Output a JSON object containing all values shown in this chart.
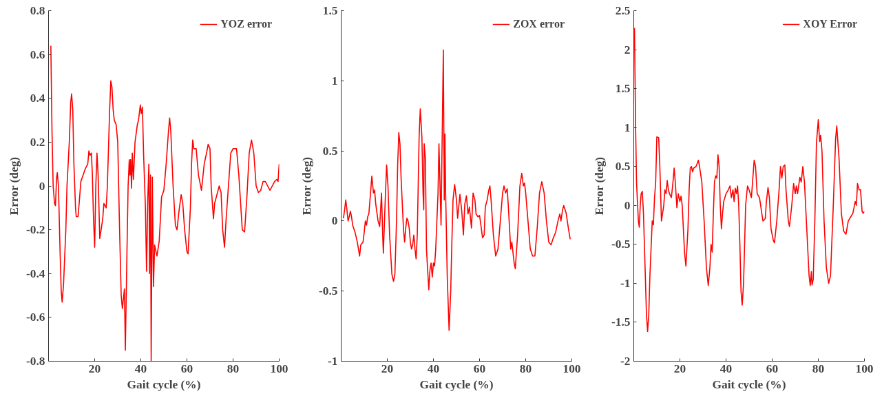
{
  "chart_data": [
    {
      "type": "line",
      "xlabel": "Gait cycle (%)",
      "ylabel": "Error (deg)",
      "legend": "top right",
      "xlim": [
        0,
        100
      ],
      "xticks": [
        20,
        40,
        60,
        80,
        100
      ],
      "ylim": [
        -0.8,
        0.8
      ],
      "yticks": [
        -0.8,
        -0.6,
        -0.4,
        -0.2,
        0,
        0.2,
        0.4,
        0.6,
        0.8
      ],
      "x": [
        1,
        1.5,
        2,
        2.6,
        3.0,
        3.5,
        3.8,
        4.3,
        5,
        5.5,
        5.9,
        6.5,
        7.5,
        8,
        8.5,
        9,
        9.6,
        10,
        10.5,
        11,
        11.7,
        12,
        12.8,
        13.5,
        14,
        15,
        16,
        17,
        17.5,
        18,
        18.6,
        19,
        19.5,
        20,
        20.5,
        21,
        21.5,
        22.2,
        22.8,
        23.5,
        24,
        25,
        25.5,
        26.5,
        27,
        27.5,
        28,
        28.5,
        29.3,
        30,
        30.8,
        31.5,
        32,
        32.6,
        32.9,
        33.3,
        34,
        34.5,
        35,
        35.3,
        35.6,
        36,
        36.3,
        36.8,
        37.5,
        38.5,
        39,
        39.8,
        40.2,
        40.7,
        41.2,
        42,
        42.5,
        43,
        43.5,
        43.8,
        44.2,
        44.5,
        45,
        45.5,
        46,
        47,
        48,
        49,
        50,
        51,
        52,
        52.5,
        53,
        54,
        55,
        55.7,
        56.5,
        57.5,
        58.2,
        59,
        60,
        60.5,
        61.5,
        62,
        62.5,
        63,
        64,
        65,
        66.3,
        67.5,
        68.5,
        69.2,
        70,
        70.5,
        71.5,
        72,
        73,
        74,
        74.8,
        75.5,
        76.3,
        77,
        78,
        79,
        80,
        81.5,
        82.5,
        84,
        85,
        86,
        87,
        88,
        89,
        90,
        91,
        92,
        93,
        94,
        95,
        96,
        97,
        98,
        99,
        99.5,
        100
      ],
      "series": [
        {
          "name": "YOZ error",
          "color": "#ff0000",
          "values": [
            0.64,
            0.25,
            0.0,
            -0.08,
            -0.09,
            0.04,
            0.06,
            0.0,
            -0.3,
            -0.48,
            -0.53,
            -0.45,
            -0.2,
            0.0,
            0.1,
            0.2,
            0.38,
            0.42,
            0.35,
            0.1,
            -0.1,
            -0.14,
            -0.14,
            -0.05,
            0.02,
            0.05,
            0.08,
            0.1,
            0.16,
            0.14,
            0.15,
            0.05,
            -0.15,
            -0.28,
            0.0,
            0.15,
            0.05,
            -0.24,
            -0.2,
            -0.15,
            -0.08,
            -0.1,
            0.0,
            0.35,
            0.48,
            0.45,
            0.35,
            0.3,
            0.28,
            0.2,
            -0.2,
            -0.5,
            -0.56,
            -0.5,
            -0.47,
            -0.75,
            -0.3,
            0.0,
            0.12,
            0.05,
            0.12,
            -0.01,
            0.15,
            0.03,
            0.2,
            0.28,
            0.3,
            0.37,
            0.33,
            0.36,
            0.15,
            -0.1,
            -0.39,
            -0.07,
            0.1,
            -0.4,
            0.05,
            -0.8,
            0.04,
            -0.46,
            -0.27,
            -0.32,
            -0.25,
            -0.05,
            -0.02,
            0.1,
            0.25,
            0.31,
            0.25,
            0.0,
            -0.18,
            -0.2,
            -0.12,
            -0.04,
            -0.08,
            -0.2,
            -0.3,
            -0.31,
            -0.1,
            0.1,
            0.21,
            0.17,
            0.17,
            0.05,
            -0.02,
            0.1,
            0.15,
            0.19,
            0.17,
            0.0,
            -0.15,
            -0.08,
            -0.04,
            0.0,
            -0.03,
            -0.2,
            -0.28,
            -0.15,
            0.0,
            0.15,
            0.17,
            0.17,
            0.05,
            -0.2,
            -0.21,
            -0.05,
            0.15,
            0.21,
            0.15,
            0.0,
            -0.03,
            -0.02,
            0.02,
            0.02,
            0.0,
            -0.02,
            0.0,
            0.02,
            0.03,
            0.02,
            0.1
          ]
        }
      ]
    },
    {
      "type": "line",
      "xlabel": "Gait cycle (%)",
      "ylabel": "Error (deg)",
      "legend": "top right",
      "xlim": [
        0,
        100
      ],
      "xticks": [
        20,
        40,
        60,
        80,
        100
      ],
      "ylim": [
        -1,
        1.5
      ],
      "yticks": [
        -1,
        -0.5,
        0,
        0.5,
        1,
        1.5
      ],
      "x": [
        1,
        1.5,
        2,
        2.5,
        3,
        3.5,
        4,
        4.5,
        5,
        6,
        7,
        8,
        8.5,
        9.5,
        10,
        10.5,
        11,
        11.5,
        12,
        12.5,
        13.3,
        14,
        14.5,
        15,
        16,
        16.7,
        17.5,
        18,
        18.3,
        19,
        19.7,
        20.3,
        21,
        22,
        22.7,
        23.3,
        24,
        24.5,
        25,
        25.5,
        26,
        27,
        27.5,
        28,
        28.5,
        29,
        29.5,
        30,
        30.5,
        31,
        31.5,
        32,
        32.5,
        33,
        33.8,
        34.3,
        35,
        35.5,
        35.8,
        36,
        36.5,
        37,
        37.5,
        38,
        38.5,
        39,
        39.5,
        40,
        40.5,
        41,
        42,
        42.4,
        42.8,
        43.3,
        43.8,
        44.3,
        44.7,
        45,
        45.3,
        46,
        46.8,
        47.5,
        48,
        48.5,
        49.2,
        50,
        50.5,
        51.5,
        52.3,
        53,
        53.6,
        54.3,
        55,
        55.6,
        56.5,
        57.2,
        58,
        58.5,
        59.3,
        60,
        60.5,
        61.3,
        62,
        62.5,
        63.3,
        64,
        64.5,
        65,
        66,
        67,
        68,
        69,
        70,
        70.6,
        71.3,
        72,
        72.5,
        73.5,
        74,
        75,
        75.5,
        76.5,
        77.5,
        78.3,
        79,
        79.5,
        80,
        81,
        82,
        83,
        84,
        85,
        86,
        87,
        88,
        89,
        90,
        91,
        92,
        93,
        94,
        94.8,
        95.3,
        96,
        96.5,
        97.5,
        98.5,
        99.3
      ],
      "series": [
        {
          "name": "ZOX error",
          "color": "#ff0000",
          "values": [
            0.02,
            0.08,
            0.15,
            0.08,
            0.0,
            0.03,
            0.07,
            0.03,
            -0.03,
            -0.08,
            -0.15,
            -0.25,
            -0.17,
            -0.15,
            -0.08,
            0.0,
            -0.03,
            0.03,
            0.05,
            0.15,
            0.32,
            0.2,
            0.22,
            0.12,
            0.0,
            -0.04,
            0.2,
            -0.1,
            -0.23,
            0.1,
            0.4,
            0.25,
            -0.1,
            -0.38,
            -0.43,
            -0.38,
            0.0,
            0.4,
            0.63,
            0.55,
            0.3,
            -0.05,
            -0.15,
            -0.05,
            0.02,
            0.0,
            -0.05,
            -0.15,
            -0.2,
            -0.17,
            -0.1,
            -0.2,
            -0.27,
            -0.1,
            0.6,
            0.8,
            0.6,
            0.2,
            0.08,
            0.55,
            0.45,
            -0.2,
            -0.35,
            -0.49,
            -0.35,
            -0.3,
            -0.4,
            -0.3,
            -0.32,
            -0.2,
            0.2,
            0.55,
            0.3,
            -0.03,
            0.6,
            1.22,
            0.15,
            0.62,
            0.2,
            -0.4,
            -0.78,
            -0.5,
            -0.15,
            0.15,
            0.26,
            0.15,
            0.02,
            0.19,
            0.07,
            -0.1,
            0.12,
            0.18,
            0.05,
            0.1,
            -0.05,
            0.2,
            0.15,
            0.05,
            0.03,
            0.04,
            -0.02,
            -0.12,
            -0.1,
            0.1,
            0.15,
            0.22,
            0.25,
            0.15,
            -0.1,
            -0.25,
            -0.2,
            0.0,
            0.2,
            0.25,
            0.2,
            0.23,
            0.1,
            -0.2,
            -0.15,
            -0.3,
            -0.34,
            -0.1,
            0.25,
            0.34,
            0.25,
            0.27,
            0.2,
            0.0,
            -0.2,
            -0.25,
            -0.25,
            -0.05,
            0.2,
            0.28,
            0.2,
            0.0,
            -0.15,
            -0.17,
            -0.12,
            -0.08,
            0.0,
            0.05,
            0.0,
            0.08,
            0.11,
            0.06,
            -0.05,
            -0.13
          ]
        }
      ]
    },
    {
      "type": "line",
      "xlabel": "Gait cycle (%)",
      "ylabel": "Error (deg)",
      "legend": "top right",
      "xlim": [
        0,
        100
      ],
      "xticks": [
        20,
        40,
        60,
        80,
        100
      ],
      "ylim": [
        -2,
        2.5
      ],
      "yticks": [
        -2,
        -1.5,
        -1,
        -0.5,
        0,
        0.5,
        1,
        1.5,
        2,
        2.5
      ],
      "x": [
        0.3,
        0.8,
        1.2,
        1.5,
        2,
        2.4,
        2.8,
        3.2,
        3.7,
        4.2,
        5,
        5.5,
        6,
        6.5,
        7,
        7.5,
        8,
        8.5,
        9,
        9.5,
        10,
        10.8,
        11.3,
        12,
        12.5,
        13,
        13.5,
        14,
        14.5,
        15,
        15.5,
        16.3,
        17,
        17.5,
        18,
        18.7,
        19.3,
        20,
        20.5,
        21,
        21.5,
        22,
        22.6,
        23.5,
        24,
        24.5,
        25,
        25.5,
        26,
        27,
        28,
        28.5,
        29.5,
        30.5,
        31.5,
        32.3,
        33,
        33.5,
        34,
        34.5,
        35,
        35.5,
        36,
        36.5,
        37,
        37.5,
        38,
        38.5,
        39,
        40,
        41,
        41.7,
        42.3,
        43,
        43.5,
        44,
        44.5,
        45,
        45.5,
        46,
        46.5,
        47,
        47.6,
        48.5,
        49.3,
        50,
        51,
        51.5,
        52.2,
        52.8,
        53.5,
        54.5,
        55.5,
        56,
        57,
        57.5,
        58.2,
        58.8,
        59.5,
        60.5,
        61,
        62,
        63,
        63.6,
        64.2,
        64.8,
        65.5,
        66,
        67,
        67.5,
        68.5,
        69.3,
        70,
        70.5,
        71,
        72,
        72.6,
        73.3,
        74,
        75,
        76,
        76.5,
        77,
        77.3,
        77.8,
        78.5,
        79.2,
        80,
        80.6,
        81,
        81.6,
        82.5,
        83.5,
        84.5,
        85.3,
        86.5,
        87.5,
        88,
        89,
        90,
        91,
        92,
        93,
        94,
        95,
        96,
        96.5,
        97,
        97.7,
        98.3,
        99,
        99.5,
        100
      ],
      "series": [
        {
          "name": "XOY Error",
          "color": "#ff0000",
          "values": [
            2.28,
            1.0,
            0.3,
            0.1,
            -0.2,
            -0.28,
            0.0,
            0.15,
            0.18,
            -0.1,
            -0.9,
            -1.4,
            -1.62,
            -1.4,
            -0.9,
            -0.55,
            -0.2,
            -0.25,
            0.1,
            0.3,
            0.88,
            0.87,
            0.5,
            -0.2,
            -0.1,
            0.0,
            0.2,
            0.15,
            0.32,
            0.2,
            0.15,
            0.1,
            0.3,
            0.48,
            0.3,
            -0.03,
            0.15,
            0.05,
            0.12,
            0.0,
            -0.3,
            -0.6,
            -0.78,
            -0.3,
            0.2,
            0.48,
            0.5,
            0.43,
            0.48,
            0.5,
            0.58,
            0.5,
            0.3,
            -0.2,
            -0.8,
            -1.03,
            -0.8,
            -0.5,
            -0.6,
            -0.1,
            0.3,
            0.38,
            0.35,
            0.65,
            0.5,
            0.0,
            -0.3,
            -0.1,
            0.05,
            0.15,
            0.2,
            0.25,
            0.1,
            0.2,
            0.05,
            0.22,
            0.15,
            0.25,
            0.0,
            -0.5,
            -1.1,
            -1.28,
            -1.0,
            0.0,
            0.25,
            0.2,
            0.1,
            0.3,
            0.58,
            0.5,
            0.15,
            0.1,
            -0.1,
            -0.2,
            -0.17,
            0.05,
            0.23,
            0.1,
            -0.3,
            -0.45,
            -0.48,
            -0.2,
            0.2,
            0.5,
            0.35,
            0.5,
            0.52,
            0.2,
            -0.2,
            -0.27,
            0.0,
            0.28,
            0.15,
            0.25,
            0.15,
            0.36,
            0.3,
            0.5,
            0.3,
            -0.3,
            -0.9,
            -1.03,
            -0.85,
            -1.02,
            -0.95,
            -0.2,
            0.8,
            1.1,
            0.82,
            0.9,
            0.7,
            -0.2,
            -0.8,
            -1.0,
            -0.9,
            0.0,
            0.85,
            1.02,
            0.6,
            -0.1,
            -0.33,
            -0.37,
            -0.2,
            -0.15,
            -0.1,
            0.05,
            0.0,
            0.28,
            0.2,
            0.2,
            -0.08,
            -0.1,
            -0.08
          ]
        }
      ]
    }
  ]
}
